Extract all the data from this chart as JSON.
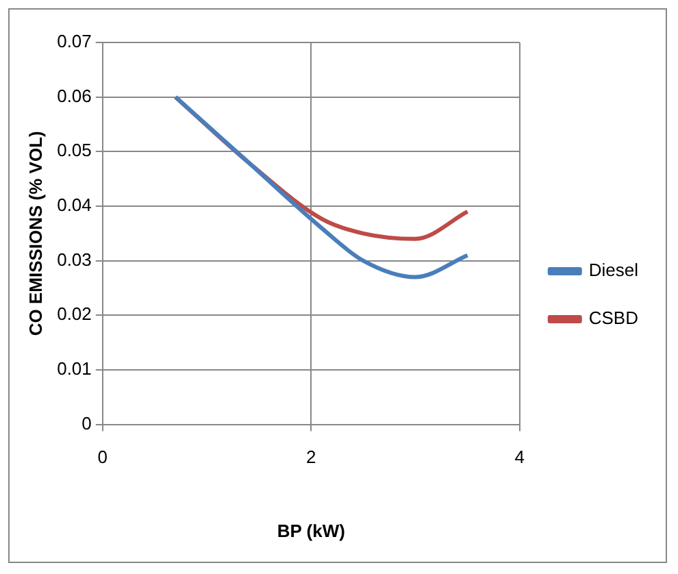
{
  "chart_data": {
    "type": "line",
    "xlabel": "BP (kW)",
    "ylabel": "CO EMISSIONS (% VOL)",
    "series": [
      {
        "name": "Diesel",
        "color": "#4a7ebb",
        "x": [
          0.7,
          1.4,
          2.1,
          2.5,
          3.0,
          3.5
        ],
        "values": [
          0.06,
          0.048,
          0.036,
          0.03,
          0.027,
          0.031
        ]
      },
      {
        "name": "CSBD",
        "color": "#be4b48",
        "x": [
          0.7,
          1.4,
          2.1,
          2.5,
          3.0,
          3.5
        ],
        "values": [
          0.06,
          0.048,
          0.0377,
          0.035,
          0.034,
          0.039
        ]
      }
    ],
    "xlim": [
      0,
      4
    ],
    "xticks": [
      0,
      2,
      4
    ],
    "ylim": [
      0,
      0.07
    ],
    "yticks": [
      0,
      0.01,
      0.02,
      0.03,
      0.04,
      0.05,
      0.06,
      0.07
    ],
    "grid": true,
    "legend": "right",
    "marker": "none",
    "line_style": "solid"
  }
}
